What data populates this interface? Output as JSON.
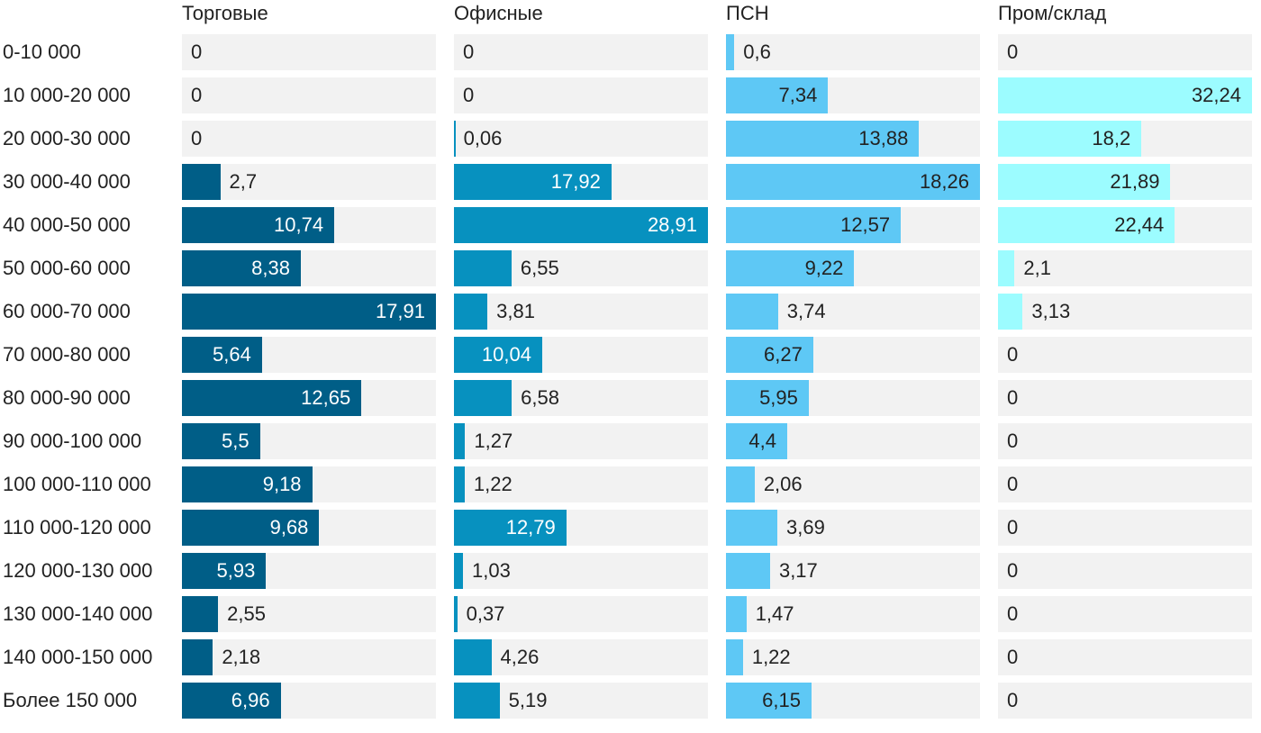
{
  "chart_data": {
    "type": "bar",
    "orientation": "horizontal",
    "layout": "small-multiples",
    "categories": [
      "0-10 000",
      "10 000-20 000",
      "20 000-30 000",
      "30 000-40 000",
      "40 000-50 000",
      "50 000-60 000",
      "60 000-70 000",
      "70 000-80 000",
      "80 000-90 000",
      "90 000-100 000",
      "100 000-110 000",
      "110 000-120 000",
      "120 000-130 000",
      "130 000-140 000",
      "140 000-150 000",
      "Более 150 000"
    ],
    "series": [
      {
        "name": "Торговые",
        "color": "#005e87",
        "inside_text": "#ffffff",
        "values": [
          0,
          0,
          0,
          2.7,
          10.74,
          8.38,
          17.91,
          5.64,
          12.65,
          5.5,
          9.18,
          9.68,
          5.93,
          2.55,
          2.18,
          6.96
        ]
      },
      {
        "name": "Офисные",
        "color": "#0791bf",
        "inside_text": "#ffffff",
        "values": [
          0,
          0,
          0.06,
          17.92,
          28.91,
          6.55,
          3.81,
          10.04,
          6.58,
          1.27,
          1.22,
          12.79,
          1.03,
          0.37,
          4.26,
          5.19
        ]
      },
      {
        "name": "ПСН",
        "color": "#5ec8f5",
        "inside_text": "#222222",
        "values": [
          0.6,
          7.34,
          13.88,
          18.26,
          12.57,
          9.22,
          3.74,
          6.27,
          5.95,
          4.4,
          2.06,
          3.69,
          3.17,
          1.47,
          1.22,
          6.15
        ]
      },
      {
        "name": "Пром/склад",
        "color": "#9cfcff",
        "inside_text": "#222222",
        "values": [
          0,
          32.24,
          18.2,
          21.89,
          22.44,
          2.1,
          3.13,
          0,
          0,
          0,
          0,
          0,
          0,
          0,
          0,
          0
        ]
      }
    ],
    "decimal_separator": ",",
    "grid": false
  }
}
